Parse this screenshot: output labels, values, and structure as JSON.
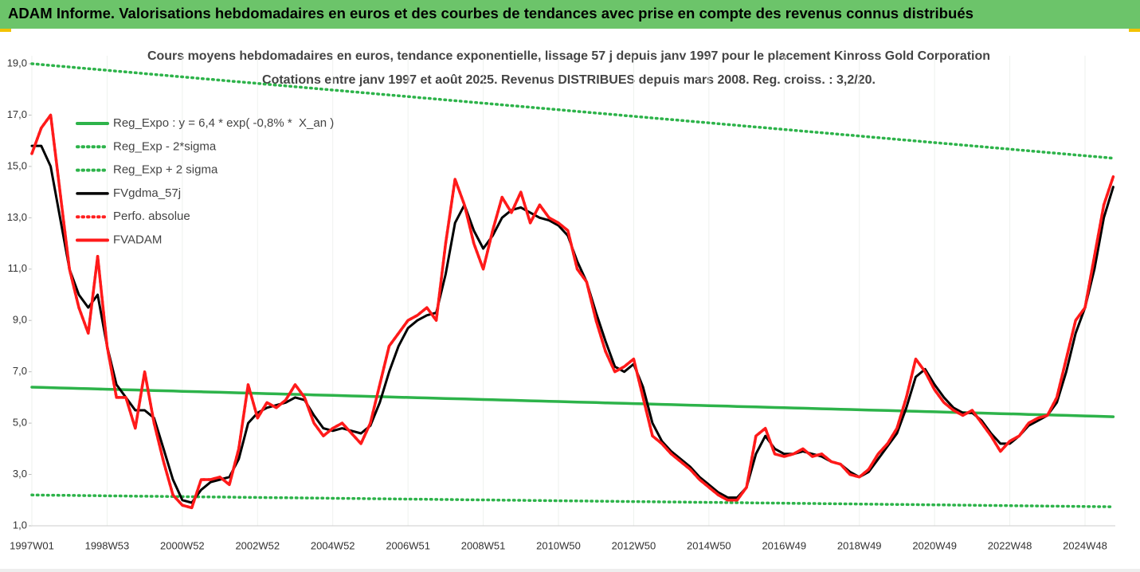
{
  "header": {
    "title": "ADAM Informe. Valorisations hebdomadaires en euros et des courbes de tendances avec prise en compte des revenus connus distribués"
  },
  "chart_data": {
    "type": "line",
    "title": "Cours moyens hebdomadaires en euros, tendance exponentielle, lissage 57 j depuis janv 1997 pour le placement Kinross Gold Corporation",
    "subtitle": "Cotations entre janv 1997 et août 2025.  Revenus DISTRIBUES depuis mars 2008. Reg. croiss. : 3,2/20.",
    "legend": "upper left",
    "categories": [
      "1997W01",
      null,
      null,
      null,
      null,
      null,
      null,
      null,
      "1998W53",
      null,
      null,
      null,
      null,
      null,
      null,
      null,
      "2000W52",
      null,
      null,
      null,
      null,
      null,
      null,
      null,
      "2002W52",
      null,
      null,
      null,
      null,
      null,
      null,
      null,
      "2004W52",
      null,
      null,
      null,
      null,
      null,
      null,
      null,
      "2006W51",
      null,
      null,
      null,
      null,
      null,
      null,
      null,
      "2008W51",
      null,
      null,
      null,
      null,
      null,
      null,
      null,
      "2010W50",
      null,
      null,
      null,
      null,
      null,
      null,
      null,
      "2012W50",
      null,
      null,
      null,
      null,
      null,
      null,
      null,
      "2014W50",
      null,
      null,
      null,
      null,
      null,
      null,
      null,
      "2016W49",
      null,
      null,
      null,
      null,
      null,
      null,
      null,
      "2018W49",
      null,
      null,
      null,
      null,
      null,
      null,
      null,
      "2020W49",
      null,
      null,
      null,
      null,
      null,
      null,
      null,
      "2022W48",
      null,
      null,
      null,
      null,
      null,
      null,
      null,
      "2024W48",
      null,
      null,
      null
    ],
    "ylim": [
      1,
      19
    ],
    "yticks": [
      {
        "value": 1,
        "label": "1,0"
      },
      {
        "value": 3,
        "label": "3,0"
      },
      {
        "value": 5,
        "label": "5,0"
      },
      {
        "value": 7,
        "label": "7,0"
      },
      {
        "value": 9,
        "label": "9,0"
      },
      {
        "value": 11,
        "label": "11,0"
      },
      {
        "value": 13,
        "label": "13,0"
      },
      {
        "value": 15,
        "label": "15,0"
      },
      {
        "value": 17,
        "label": "17,0"
      },
      {
        "value": 19,
        "label": "19,0"
      }
    ],
    "series": [
      {
        "name": "Reg_Expo : y = 6,4 * exp( -0,8% *  X_an )",
        "color": "#2db34a",
        "style": "solid",
        "values": [
          6.4,
          6.39,
          6.38,
          6.37,
          6.36,
          6.35,
          6.34,
          6.33,
          6.32,
          6.31,
          6.3,
          6.29,
          6.28,
          6.27,
          6.26,
          6.25,
          6.24,
          6.23,
          6.22,
          6.21,
          6.2,
          6.19,
          6.18,
          6.17,
          6.16,
          6.15,
          6.14,
          6.13,
          6.12,
          6.11,
          6.1,
          6.09,
          6.08,
          6.07,
          6.06,
          6.05,
          6.04,
          6.03,
          6.02,
          6.01,
          6.0,
          5.99,
          5.98,
          5.97,
          5.96,
          5.95,
          5.94,
          5.93,
          5.92,
          5.91,
          5.9,
          5.89,
          5.88,
          5.87,
          5.86,
          5.85,
          5.84,
          5.83,
          5.82,
          5.81,
          5.8,
          5.79,
          5.78,
          5.77,
          5.76,
          5.75,
          5.74,
          5.73,
          5.72,
          5.71,
          5.7,
          5.69,
          5.68,
          5.67,
          5.66,
          5.65,
          5.64,
          5.63,
          5.62,
          5.61,
          5.6,
          5.59,
          5.58,
          5.57,
          5.56,
          5.55,
          5.54,
          5.53,
          5.52,
          5.51,
          5.5,
          5.49,
          5.48,
          5.47,
          5.46,
          5.45,
          5.44,
          5.43,
          5.42,
          5.41,
          5.4,
          5.39,
          5.38,
          5.37,
          5.36,
          5.35,
          5.34,
          5.33,
          5.32,
          5.31,
          5.3,
          5.29,
          5.28,
          5.27,
          5.26,
          5.25
        ]
      },
      {
        "name": "Reg_Exp - 2*sigma",
        "color": "#2db34a",
        "style": "dotted",
        "values": [
          2.2,
          2.196,
          2.192,
          2.188,
          2.184,
          2.18,
          2.176,
          2.172,
          2.168,
          2.164,
          2.16,
          2.156,
          2.152,
          2.148,
          2.144,
          2.14,
          2.136,
          2.132,
          2.128,
          2.124,
          2.12,
          2.116,
          2.112,
          2.108,
          2.104,
          2.1,
          2.096,
          2.092,
          2.088,
          2.084,
          2.08,
          2.076,
          2.072,
          2.068,
          2.064,
          2.06,
          2.056,
          2.052,
          2.048,
          2.044,
          2.04,
          2.036,
          2.032,
          2.028,
          2.024,
          2.02,
          2.016,
          2.012,
          2.008,
          2.004,
          2.0,
          1.996,
          1.992,
          1.988,
          1.984,
          1.98,
          1.976,
          1.972,
          1.968,
          1.964,
          1.96,
          1.956,
          1.952,
          1.948,
          1.944,
          1.94,
          1.936,
          1.932,
          1.928,
          1.924,
          1.92,
          1.916,
          1.912,
          1.908,
          1.904,
          1.9,
          1.896,
          1.892,
          1.888,
          1.884,
          1.88,
          1.876,
          1.872,
          1.868,
          1.864,
          1.86,
          1.856,
          1.852,
          1.848,
          1.844,
          1.84,
          1.836,
          1.832,
          1.828,
          1.824,
          1.82,
          1.816,
          1.812,
          1.808,
          1.804,
          1.8,
          1.796,
          1.792,
          1.788,
          1.784,
          1.78,
          1.776,
          1.772,
          1.768,
          1.764,
          1.76,
          1.756,
          1.752,
          1.748,
          1.744,
          1.74
        ]
      },
      {
        "name": "Reg_Exp + 2 sigma",
        "color": "#2db34a",
        "style": "dotted",
        "values": [
          19,
          18.968,
          18.936,
          18.904,
          18.872,
          18.84,
          18.808,
          18.776,
          18.744,
          18.712,
          18.68,
          18.648,
          18.616,
          18.584,
          18.552,
          18.52,
          18.488,
          18.456,
          18.424,
          18.392,
          18.36,
          18.328,
          18.296,
          18.264,
          18.232,
          18.2,
          18.168,
          18.136,
          18.104,
          18.072,
          18.04,
          18.008,
          17.976,
          17.944,
          17.912,
          17.88,
          17.848,
          17.816,
          17.784,
          17.752,
          17.72,
          17.688,
          17.656,
          17.624,
          17.592,
          17.56,
          17.528,
          17.496,
          17.464,
          17.432,
          17.4,
          17.368,
          17.336,
          17.304,
          17.272,
          17.24,
          17.208,
          17.176,
          17.144,
          17.112,
          17.08,
          17.048,
          17.016,
          16.984,
          16.952,
          16.92,
          16.888,
          16.856,
          16.824,
          16.792,
          16.76,
          16.728,
          16.696,
          16.664,
          16.632,
          16.6,
          16.568,
          16.536,
          16.504,
          16.472,
          16.44,
          16.408,
          16.376,
          16.344,
          16.312,
          16.28,
          16.248,
          16.216,
          16.184,
          16.152,
          16.12,
          16.088,
          16.056,
          16.024,
          15.992,
          15.96,
          15.928,
          15.896,
          15.864,
          15.832,
          15.8,
          15.768,
          15.736,
          15.704,
          15.672,
          15.64,
          15.608,
          15.576,
          15.544,
          15.512,
          15.48,
          15.448,
          15.416,
          15.384,
          15.352,
          15.32
        ]
      },
      {
        "name": "FVgdma_57j",
        "color": "#000000",
        "style": "solid",
        "values": [
          15.8,
          15.8,
          15.0,
          13.0,
          11.0,
          10.0,
          9.5,
          10.0,
          8.0,
          6.5,
          6.0,
          5.5,
          5.5,
          5.2,
          4.0,
          2.8,
          2.0,
          1.9,
          2.4,
          2.7,
          2.8,
          2.9,
          3.6,
          5.0,
          5.4,
          5.6,
          5.7,
          5.8,
          6.0,
          5.9,
          5.3,
          4.8,
          4.7,
          4.8,
          4.7,
          4.6,
          4.9,
          5.8,
          7.0,
          8.0,
          8.7,
          9.0,
          9.2,
          9.3,
          10.8,
          12.8,
          13.5,
          12.5,
          11.8,
          12.3,
          13.0,
          13.3,
          13.4,
          13.2,
          13.0,
          12.9,
          12.7,
          12.3,
          11.3,
          10.5,
          9.3,
          8.2,
          7.2,
          7.0,
          7.3,
          6.4,
          5.0,
          4.3,
          3.9,
          3.6,
          3.3,
          2.9,
          2.6,
          2.3,
          2.1,
          2.1,
          2.5,
          3.8,
          4.5,
          4.0,
          3.8,
          3.8,
          3.9,
          3.8,
          3.7,
          3.5,
          3.4,
          3.1,
          2.9,
          3.1,
          3.6,
          4.1,
          4.6,
          5.6,
          6.8,
          7.1,
          6.5,
          6.0,
          5.6,
          5.4,
          5.4,
          5.1,
          4.6,
          4.2,
          4.2,
          4.5,
          4.9,
          5.1,
          5.3,
          5.8,
          7.0,
          8.5,
          9.5,
          11.0,
          13.0,
          14.2
        ]
      },
      {
        "name": "Perfo. absolue",
        "color": "#ff2020",
        "style": "dotted",
        "values": [
          15.5,
          16.5,
          17.0,
          14.0,
          11.0,
          9.5,
          8.5,
          11.5,
          8.0,
          6.0,
          6.0,
          4.8,
          7.0,
          5.0,
          3.5,
          2.2,
          1.8,
          1.7,
          2.8,
          2.8,
          2.9,
          2.6,
          4.0,
          6.5,
          5.2,
          5.8,
          5.6,
          5.9,
          6.5,
          6.0,
          5.0,
          4.5,
          4.8,
          5.0,
          4.6,
          4.2,
          5.0,
          6.5,
          8.0,
          8.5,
          9.0,
          9.2,
          9.5,
          9.0,
          12.0,
          14.5,
          13.5,
          12.0,
          11.0,
          12.5,
          13.8,
          13.2,
          14.0,
          12.8,
          13.5,
          13.0,
          12.8,
          12.5,
          11.0,
          10.5,
          9.0,
          7.8,
          7.0,
          7.2,
          7.5,
          6.0,
          4.5,
          4.2,
          3.8,
          3.5,
          3.2,
          2.8,
          2.5,
          2.2,
          2.0,
          2.0,
          2.5,
          4.5,
          4.8,
          3.8,
          3.7,
          3.8,
          4.0,
          3.7,
          3.8,
          3.5,
          3.4,
          3.0,
          2.9,
          3.2,
          3.8,
          4.2,
          4.8,
          6.0,
          7.5,
          7.0,
          6.3,
          5.8,
          5.5,
          5.3,
          5.5,
          5.0,
          4.5,
          3.9,
          4.3,
          4.5,
          5.0,
          5.2,
          5.3,
          6.0,
          7.5,
          9.0,
          9.5,
          11.5,
          13.5,
          14.6
        ]
      },
      {
        "name": "FVADAM",
        "color": "#ff1a1a",
        "style": "solid",
        "values": [
          15.5,
          16.5,
          17.0,
          14.0,
          11.0,
          9.5,
          8.5,
          11.5,
          8.0,
          6.0,
          6.0,
          4.8,
          7.0,
          5.0,
          3.5,
          2.2,
          1.8,
          1.7,
          2.8,
          2.8,
          2.9,
          2.6,
          4.0,
          6.5,
          5.2,
          5.8,
          5.6,
          5.9,
          6.5,
          6.0,
          5.0,
          4.5,
          4.8,
          5.0,
          4.6,
          4.2,
          5.0,
          6.5,
          8.0,
          8.5,
          9.0,
          9.2,
          9.5,
          9.0,
          12.0,
          14.5,
          13.5,
          12.0,
          11.0,
          12.5,
          13.8,
          13.2,
          14.0,
          12.8,
          13.5,
          13.0,
          12.8,
          12.5,
          11.0,
          10.5,
          9.0,
          7.8,
          7.0,
          7.2,
          7.5,
          6.0,
          4.5,
          4.2,
          3.8,
          3.5,
          3.2,
          2.8,
          2.5,
          2.2,
          2.0,
          2.0,
          2.5,
          4.5,
          4.8,
          3.8,
          3.7,
          3.8,
          4.0,
          3.7,
          3.8,
          3.5,
          3.4,
          3.0,
          2.9,
          3.2,
          3.8,
          4.2,
          4.8,
          6.0,
          7.5,
          7.0,
          6.3,
          5.8,
          5.5,
          5.3,
          5.5,
          5.0,
          4.5,
          3.9,
          4.3,
          4.5,
          5.0,
          5.2,
          5.3,
          6.0,
          7.5,
          9.0,
          9.5,
          11.5,
          13.5,
          14.6
        ]
      }
    ]
  }
}
